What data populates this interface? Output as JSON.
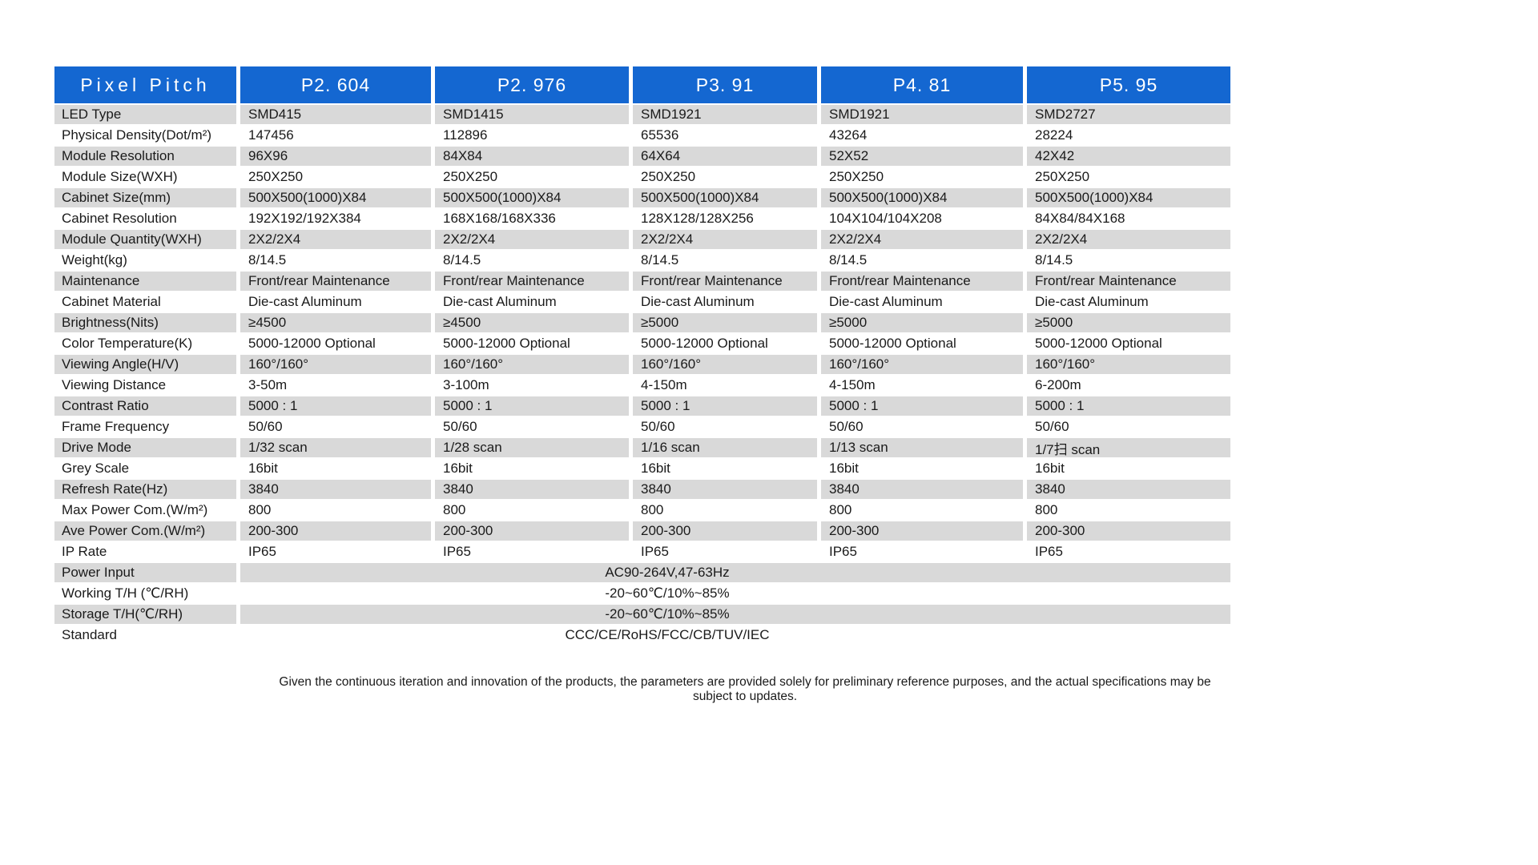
{
  "table": {
    "header": {
      "label": "Pixel Pitch",
      "columns": [
        "P2. 604",
        "P2. 976",
        "P3. 91",
        "P4. 81",
        "P5. 95"
      ]
    },
    "rows": [
      {
        "label": "LED Type",
        "values": [
          "SMD415",
          "SMD1415",
          "SMD1921",
          "SMD1921",
          "SMD2727"
        ]
      },
      {
        "label": "Physical Density(Dot/m²)",
        "values": [
          "147456",
          "112896",
          "65536",
          "43264",
          "28224"
        ]
      },
      {
        "label": "Module Resolution",
        "values": [
          "96X96",
          "84X84",
          "64X64",
          "52X52",
          "42X42"
        ]
      },
      {
        "label": "Module Size(WXH)",
        "values": [
          "250X250",
          "250X250",
          "250X250",
          "250X250",
          "250X250"
        ]
      },
      {
        "label": "Cabinet Size(mm)",
        "values": [
          "500X500(1000)X84",
          "500X500(1000)X84",
          "500X500(1000)X84",
          "500X500(1000)X84",
          "500X500(1000)X84"
        ]
      },
      {
        "label": "Cabinet Resolution",
        "values": [
          "192X192/192X384",
          "168X168/168X336",
          "128X128/128X256",
          "104X104/104X208",
          "84X84/84X168"
        ]
      },
      {
        "label": "Module Quantity(WXH)",
        "values": [
          "2X2/2X4",
          "2X2/2X4",
          "2X2/2X4",
          "2X2/2X4",
          "2X2/2X4"
        ]
      },
      {
        "label": "Weight(kg)",
        "values": [
          "8/14.5",
          "8/14.5",
          "8/14.5",
          "8/14.5",
          "8/14.5"
        ]
      },
      {
        "label": "Maintenance",
        "values": [
          "Front/rear Maintenance",
          "Front/rear Maintenance",
          "Front/rear Maintenance",
          "Front/rear Maintenance",
          "Front/rear Maintenance"
        ]
      },
      {
        "label": "Cabinet Material",
        "values": [
          "Die-cast Aluminum",
          "Die-cast Aluminum",
          "Die-cast Aluminum",
          "Die-cast Aluminum",
          "Die-cast Aluminum"
        ]
      },
      {
        "label": "Brightness(Nits)",
        "values": [
          "≥4500",
          "≥4500",
          "≥5000",
          "≥5000",
          "≥5000"
        ]
      },
      {
        "label": "Color Temperature(K)",
        "values": [
          "5000-12000 Optional",
          "5000-12000 Optional",
          "5000-12000 Optional",
          "5000-12000 Optional",
          "5000-12000 Optional"
        ]
      },
      {
        "label": "Viewing Angle(H/V)",
        "values": [
          "160°/160°",
          "160°/160°",
          "160°/160°",
          "160°/160°",
          "160°/160°"
        ]
      },
      {
        "label": "Viewing Distance",
        "values": [
          "3-50m",
          "3-100m",
          "4-150m",
          "4-150m",
          "6-200m"
        ]
      },
      {
        "label": "Contrast Ratio",
        "values": [
          "5000 : 1",
          "5000 : 1",
          "5000 : 1",
          "5000 : 1",
          "5000 : 1"
        ]
      },
      {
        "label": "Frame Frequency",
        "values": [
          "50/60",
          "50/60",
          "50/60",
          "50/60",
          "50/60"
        ]
      },
      {
        "label": "Drive Mode",
        "values": [
          "1/32 scan",
          "1/28 scan",
          "1/16 scan",
          "1/13 scan",
          "1/7扫 scan"
        ]
      },
      {
        "label": "Grey Scale",
        "values": [
          "16bit",
          "16bit",
          "16bit",
          "16bit",
          "16bit"
        ]
      },
      {
        "label": "Refresh Rate(Hz)",
        "values": [
          "3840",
          "3840",
          "3840",
          "3840",
          "3840"
        ]
      },
      {
        "label": "Max Power Com.(W/m²)",
        "values": [
          "800",
          "800",
          "800",
          "800",
          "800"
        ]
      },
      {
        "label": "Ave Power Com.(W/m²)",
        "values": [
          "200-300",
          "200-300",
          "200-300",
          "200-300",
          "200-300"
        ]
      },
      {
        "label": "IP Rate",
        "values": [
          "IP65",
          "IP65",
          "IP65",
          "IP65",
          "IP65"
        ]
      },
      {
        "label": "Power Input",
        "span": "AC90-264V,47-63Hz"
      },
      {
        "label": "Working T/H (℃/RH)",
        "span": "-20~60℃/10%~85%"
      },
      {
        "label": "Storage T/H(℃/RH)",
        "span": "-20~60℃/10%~85%"
      },
      {
        "label": "Standard",
        "span": "CCC/CE/RoHS/FCC/CB/TUV/IEC"
      }
    ],
    "colors": {
      "header_bg": "#1467d1",
      "header_text": "#ffffff",
      "row_bg": "#ffffff",
      "row_alt_bg": "#d9d9d9",
      "text": "#1a1a1a"
    }
  },
  "footer": {
    "note": "Given the continuous iteration and innovation of the products, the parameters are provided solely for preliminary reference purposes, and the actual specifications may be subject to updates."
  }
}
